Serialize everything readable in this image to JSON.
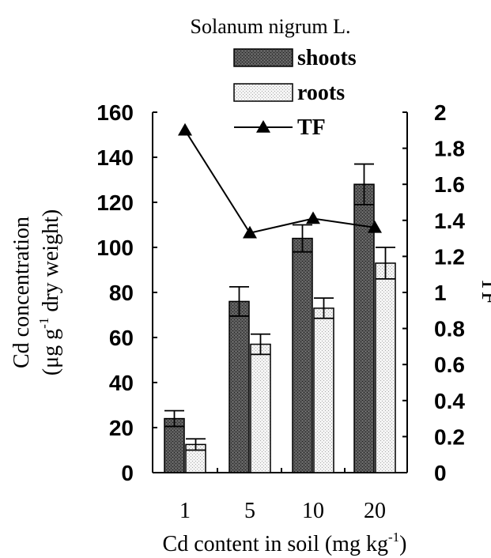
{
  "chart_data": {
    "type": "bar",
    "title": "Solanum nigrum L.",
    "categories": [
      "1",
      "5",
      "10",
      "20"
    ],
    "xlabel": {
      "text": "Cd content in soil (mg kg",
      "sup": "-1",
      "close": ")"
    },
    "ylabel_left": {
      "line1": "Cd concentration",
      "line2_pre": "(μg g",
      "line2_sup": "-1",
      "line2_post": " dry weight)"
    },
    "ylabel_right": "TF",
    "ylim_left": [
      0,
      160
    ],
    "ylim_right": [
      0,
      2
    ],
    "yticks_left": [
      "0",
      "20",
      "40",
      "60",
      "80",
      "100",
      "120",
      "140",
      "160"
    ],
    "yticks_right": [
      "0",
      "0.2",
      "0.4",
      "0.6",
      "0.8",
      "1",
      "1.2",
      "1.4",
      "1.6",
      "1.8",
      "2"
    ],
    "series": [
      {
        "name": "shoots",
        "type": "bar",
        "axis": "left",
        "values": [
          24,
          76,
          104,
          128
        ],
        "errors": [
          3.5,
          6.5,
          6,
          9
        ],
        "color": "#4a4a4a"
      },
      {
        "name": "roots",
        "type": "bar",
        "axis": "left",
        "values": [
          12.5,
          57,
          73,
          93
        ],
        "errors": [
          2.5,
          4.5,
          4.5,
          7
        ],
        "color": "#e6e6e6"
      },
      {
        "name": "TF",
        "type": "line",
        "axis": "right",
        "values": [
          1.9,
          1.33,
          1.41,
          1.36
        ],
        "marker": "triangle",
        "color": "#000000"
      }
    ],
    "legend": {
      "position": "top-right"
    },
    "grid": false
  }
}
